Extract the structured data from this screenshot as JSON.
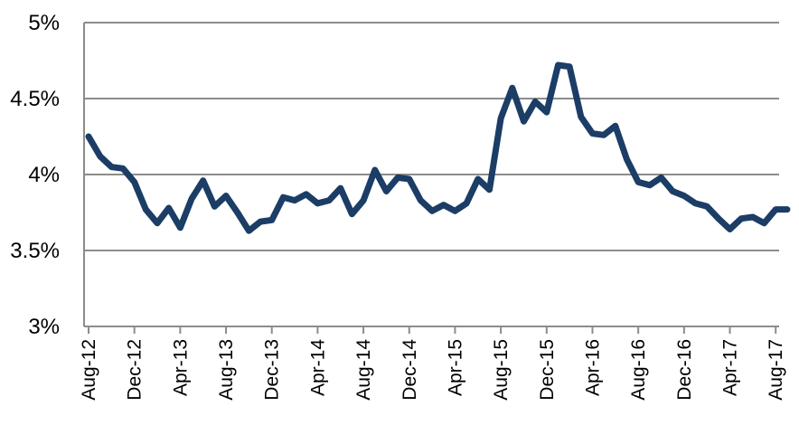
{
  "chart_data": {
    "type": "line",
    "title": "",
    "xlabel": "",
    "ylabel": "",
    "ylim": [
      3,
      5
    ],
    "y_ticks": [
      3,
      3.5,
      4,
      4.5,
      5
    ],
    "y_tick_labels": [
      "3%",
      "3.5%",
      "4%",
      "4.5%",
      "5%"
    ],
    "x_tick_labels": [
      "Aug-12",
      "Dec-12",
      "Apr-13",
      "Aug-13",
      "Dec-13",
      "Apr-14",
      "Aug-14",
      "Dec-14",
      "Apr-15",
      "Aug-15",
      "Dec-15",
      "Apr-16",
      "Aug-16",
      "Dec-16",
      "Apr-17",
      "Aug-17"
    ],
    "grid": true,
    "legend": "none",
    "line_color": "#1b3d66",
    "grid_color": "#8c8c8c",
    "x": [
      "Aug-12",
      "Sep-12",
      "Oct-12",
      "Nov-12",
      "Dec-12",
      "Jan-13",
      "Feb-13",
      "Mar-13",
      "Apr-13",
      "May-13",
      "Jun-13",
      "Jul-13",
      "Aug-13",
      "Sep-13",
      "Oct-13",
      "Nov-13",
      "Dec-13",
      "Jan-14",
      "Feb-14",
      "Mar-14",
      "Apr-14",
      "May-14",
      "Jun-14",
      "Jul-14",
      "Aug-14",
      "Sep-14",
      "Oct-14",
      "Nov-14",
      "Dec-14",
      "Jan-15",
      "Feb-15",
      "Mar-15",
      "Apr-15",
      "May-15",
      "Jun-15",
      "Jul-15",
      "Aug-15",
      "Sep-15",
      "Oct-15",
      "Nov-15",
      "Dec-15",
      "Jan-16",
      "Feb-16",
      "Mar-16",
      "Apr-16",
      "May-16",
      "Jun-16",
      "Jul-16",
      "Aug-16",
      "Sep-16",
      "Oct-16",
      "Nov-16",
      "Dec-16",
      "Jan-17",
      "Feb-17",
      "Mar-17",
      "Apr-17",
      "May-17",
      "Jun-17",
      "Jul-17",
      "Aug-17",
      "Sep-17"
    ],
    "series": [
      {
        "values": [
          4.25,
          4.12,
          4.05,
          4.04,
          3.95,
          3.77,
          3.68,
          3.78,
          3.65,
          3.84,
          3.96,
          3.79,
          3.86,
          3.75,
          3.63,
          3.69,
          3.7,
          3.85,
          3.83,
          3.87,
          3.81,
          3.83,
          3.91,
          3.74,
          3.83,
          4.03,
          3.89,
          3.98,
          3.97,
          3.83,
          3.76,
          3.8,
          3.76,
          3.81,
          3.97,
          3.9,
          4.37,
          4.57,
          4.35,
          4.48,
          4.41,
          4.72,
          4.71,
          4.38,
          4.27,
          4.26,
          4.32,
          4.1,
          3.95,
          3.93,
          3.98,
          3.89,
          3.86,
          3.81,
          3.79,
          3.71,
          3.64,
          3.71,
          3.72,
          3.68,
          3.77,
          3.77
        ]
      }
    ]
  }
}
